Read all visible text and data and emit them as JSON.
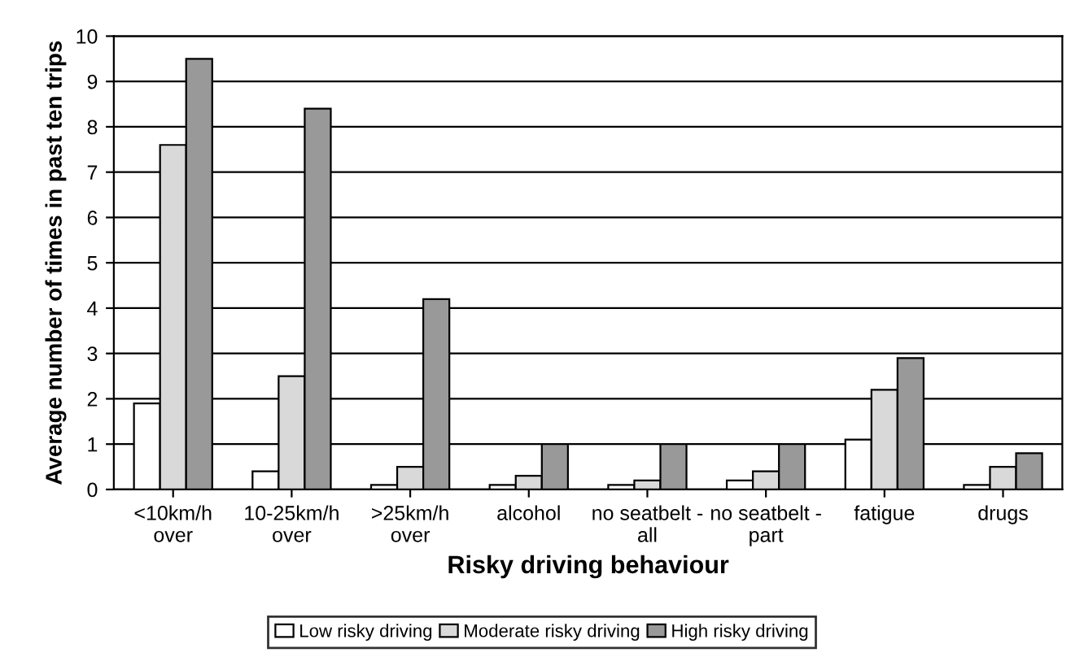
{
  "chart_data": {
    "type": "bar",
    "xlabel": "Risky driving behaviour",
    "ylabel": "Average number of times in past ten trips",
    "categories": [
      "<10km/h\nover",
      "10-25km/h\nover",
      ">25km/h\nover",
      "alcohol",
      "no seatbelt -\nall",
      "no seatbelt -\npart",
      "fatigue",
      "drugs"
    ],
    "series": [
      {
        "name": "Low risky driving",
        "color": "#ffffff",
        "values": [
          1.9,
          0.4,
          0.1,
          0.1,
          0.1,
          0.2,
          1.1,
          0.1
        ]
      },
      {
        "name": "Moderate risky driving",
        "color": "#d9d9d9",
        "values": [
          7.6,
          2.5,
          0.5,
          0.3,
          0.2,
          0.4,
          2.2,
          0.5
        ]
      },
      {
        "name": "High risky driving",
        "color": "#999999",
        "values": [
          9.5,
          8.4,
          4.2,
          1.0,
          1.0,
          1.0,
          2.9,
          0.8
        ]
      }
    ],
    "ylim": [
      0,
      10
    ],
    "yticks": [
      0,
      1,
      2,
      3,
      4,
      5,
      6,
      7,
      8,
      9,
      10
    ],
    "grid": "y",
    "legend": "bottom"
  }
}
